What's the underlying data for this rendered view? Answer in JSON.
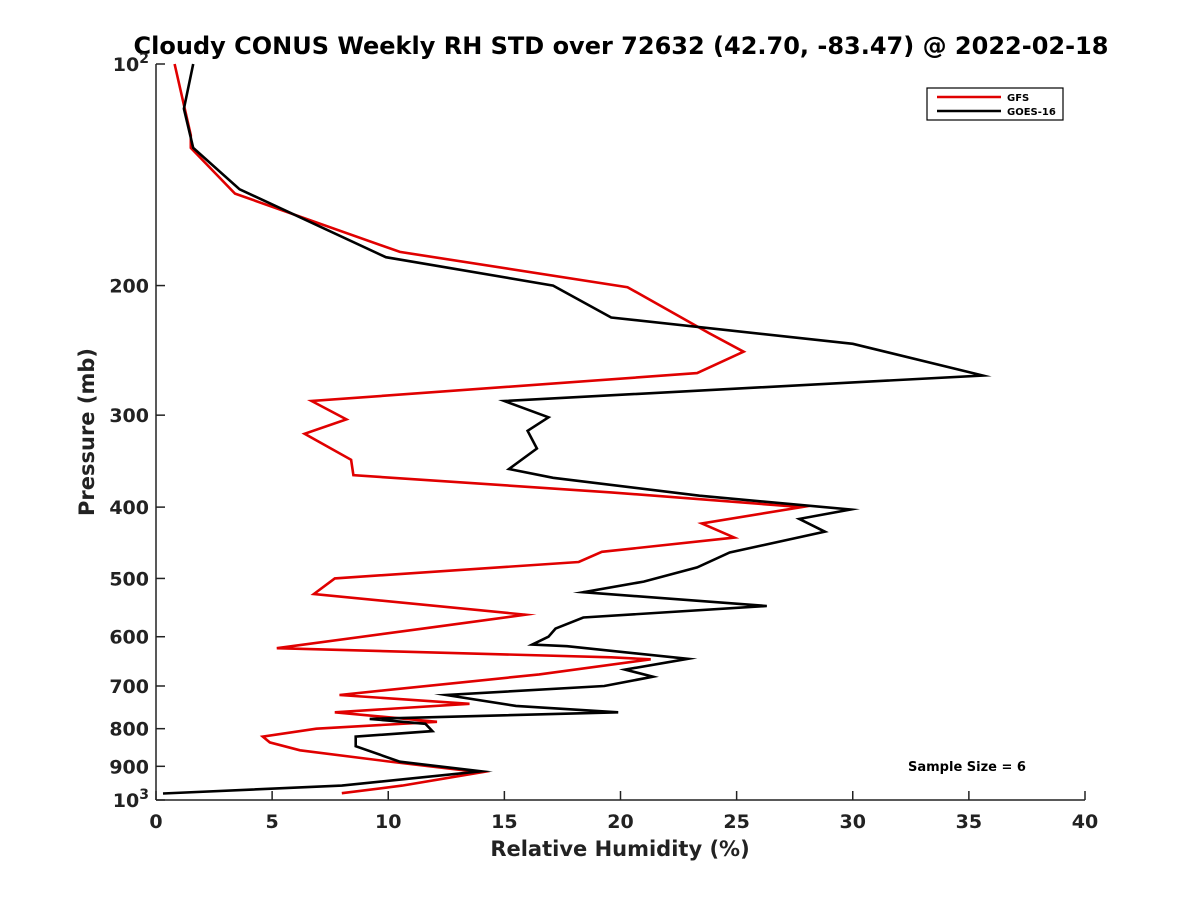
{
  "chart_data": {
    "type": "line",
    "title": "Cloudy CONUS Weekly RH STD over 72632 (42.70, -83.47) @ 2022-02-18",
    "xlabel": "Relative Humidity (%)",
    "ylabel": "Pressure (mb)",
    "xlim": [
      0,
      40
    ],
    "ylim": [
      100,
      1000
    ],
    "y_scale": "log",
    "y_reversed": true,
    "grid": false,
    "legend_position": "top-right",
    "x_ticks": [
      0,
      5,
      10,
      15,
      20,
      25,
      30,
      35,
      40
    ],
    "x_tick_labels": [
      "0",
      "5",
      "10",
      "15",
      "20",
      "25",
      "30",
      "35",
      "40"
    ],
    "y_ticks": [
      100,
      200,
      300,
      400,
      500,
      600,
      700,
      800,
      900,
      1000
    ],
    "y_tick_labels": [
      {
        "base": "10",
        "exp": "2"
      },
      {
        "base": "200",
        "exp": ""
      },
      {
        "base": "300",
        "exp": ""
      },
      {
        "base": "400",
        "exp": ""
      },
      {
        "base": "500",
        "exp": ""
      },
      {
        "base": "600",
        "exp": ""
      },
      {
        "base": "700",
        "exp": ""
      },
      {
        "base": "800",
        "exp": ""
      },
      {
        "base": "900",
        "exp": ""
      },
      {
        "base": "10",
        "exp": "3"
      }
    ],
    "annotation": "Sample Size = 6",
    "series": [
      {
        "name": "GFS",
        "color": "#e00000",
        "points": [
          [
            0.8,
            100
          ],
          [
            1.5,
            125
          ],
          [
            1.5,
            130
          ],
          [
            3.4,
            150
          ],
          [
            10.5,
            180
          ],
          [
            20.3,
            201
          ],
          [
            23.8,
            232
          ],
          [
            25.3,
            246
          ],
          [
            23.3,
            263
          ],
          [
            6.7,
            287
          ],
          [
            8.2,
            304
          ],
          [
            6.4,
            318
          ],
          [
            8.4,
            345
          ],
          [
            8.5,
            362
          ],
          [
            19.6,
            382
          ],
          [
            27.8,
            400
          ],
          [
            23.5,
            421
          ],
          [
            24.9,
            440
          ],
          [
            19.2,
            460
          ],
          [
            18.2,
            475
          ],
          [
            7.7,
            500
          ],
          [
            6.8,
            525
          ],
          [
            15.9,
            560
          ],
          [
            11.5,
            585
          ],
          [
            5.2,
            622
          ],
          [
            19.6,
            640
          ],
          [
            21.3,
            644
          ],
          [
            16.5,
            675
          ],
          [
            7.9,
            720
          ],
          [
            13.5,
            740
          ],
          [
            7.7,
            760
          ],
          [
            12.1,
            783
          ],
          [
            6.9,
            800
          ],
          [
            4.6,
            820
          ],
          [
            4.9,
            835
          ],
          [
            6.2,
            856
          ],
          [
            10.2,
            888
          ],
          [
            14.0,
            917
          ],
          [
            10.6,
            956
          ],
          [
            8.0,
            979
          ]
        ]
      },
      {
        "name": "GOES-16",
        "color": "#000000",
        "points": [
          [
            1.6,
            100
          ],
          [
            1.2,
            115
          ],
          [
            1.6,
            130
          ],
          [
            3.6,
            148
          ],
          [
            9.9,
            183
          ],
          [
            17.1,
            200
          ],
          [
            19.6,
            221
          ],
          [
            30.0,
            240
          ],
          [
            35.6,
            265
          ],
          [
            15.0,
            287
          ],
          [
            16.9,
            302
          ],
          [
            16.0,
            315
          ],
          [
            16.4,
            333
          ],
          [
            15.2,
            355
          ],
          [
            17.1,
            365
          ],
          [
            23.4,
            386
          ],
          [
            29.9,
            403
          ],
          [
            27.7,
            415
          ],
          [
            28.8,
            432
          ],
          [
            24.7,
            461
          ],
          [
            23.3,
            483
          ],
          [
            21.0,
            505
          ],
          [
            18.4,
            522
          ],
          [
            26.3,
            545
          ],
          [
            18.4,
            565
          ],
          [
            17.2,
            585
          ],
          [
            16.9,
            600
          ],
          [
            16.2,
            615
          ],
          [
            17.7,
            618
          ],
          [
            22.9,
            643
          ],
          [
            20.2,
            665
          ],
          [
            21.4,
            680
          ],
          [
            19.3,
            700
          ],
          [
            12.5,
            720
          ],
          [
            15.5,
            745
          ],
          [
            19.9,
            760
          ],
          [
            9.2,
            776
          ],
          [
            11.6,
            788
          ],
          [
            11.9,
            806
          ],
          [
            8.6,
            820
          ],
          [
            8.6,
            845
          ],
          [
            10.5,
            887
          ],
          [
            14.0,
            914
          ],
          [
            8.0,
            956
          ],
          [
            0.3,
            980
          ]
        ]
      }
    ]
  }
}
